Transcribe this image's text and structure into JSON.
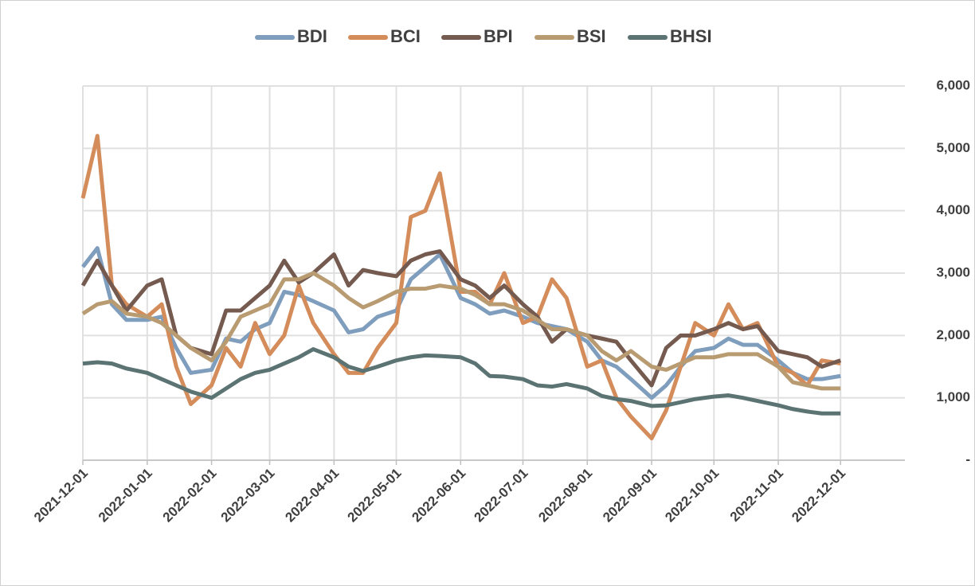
{
  "chart_data": {
    "type": "line",
    "x": [
      "2021-12-01",
      "2021-12-08",
      "2021-12-15",
      "2021-12-22",
      "2022-01-01",
      "2022-01-08",
      "2022-01-15",
      "2022-01-22",
      "2022-02-01",
      "2022-02-08",
      "2022-02-15",
      "2022-02-22",
      "2022-03-01",
      "2022-03-08",
      "2022-03-15",
      "2022-03-22",
      "2022-04-01",
      "2022-04-08",
      "2022-04-15",
      "2022-04-22",
      "2022-05-01",
      "2022-05-08",
      "2022-05-15",
      "2022-05-22",
      "2022-06-01",
      "2022-06-08",
      "2022-06-15",
      "2022-06-22",
      "2022-07-01",
      "2022-07-08",
      "2022-07-15",
      "2022-07-22",
      "2022-08-01",
      "2022-08-08",
      "2022-08-15",
      "2022-08-22",
      "2022-09-01",
      "2022-09-08",
      "2022-09-15",
      "2022-09-22",
      "2022-10-01",
      "2022-10-08",
      "2022-10-15",
      "2022-10-22",
      "2022-11-01",
      "2022-11-08",
      "2022-11-15",
      "2022-11-22",
      "2022-12-01"
    ],
    "series": [
      {
        "name": "BDI",
        "color": "#7f9dbd",
        "values": [
          3100,
          3400,
          2500,
          2250,
          2250,
          2300,
          1800,
          1400,
          1450,
          1950,
          1900,
          2100,
          2200,
          2700,
          2650,
          2550,
          2400,
          2050,
          2100,
          2300,
          2400,
          2900,
          3100,
          3300,
          2600,
          2500,
          2350,
          2400,
          2300,
          2200,
          2150,
          2100,
          1900,
          1600,
          1500,
          1300,
          1000,
          1200,
          1500,
          1750,
          1800,
          1950,
          1850,
          1850,
          1600,
          1400,
          1300,
          1300,
          1350
        ]
      },
      {
        "name": "BCI",
        "color": "#d48c5a",
        "values": [
          4200,
          5200,
          2800,
          2500,
          2300,
          2500,
          1500,
          900,
          1200,
          1800,
          1500,
          2200,
          1700,
          2000,
          2800,
          2200,
          1700,
          1400,
          1400,
          1800,
          2200,
          3900,
          4000,
          4600,
          2700,
          2700,
          2500,
          3000,
          2200,
          2300,
          2900,
          2600,
          1500,
          1600,
          1000,
          700,
          350,
          800,
          1500,
          2200,
          2000,
          2500,
          2100,
          2200,
          1500,
          1400,
          1200,
          1600,
          1550
        ]
      },
      {
        "name": "BPI",
        "color": "#755a4f",
        "values": [
          2800,
          3200,
          2800,
          2400,
          2800,
          2900,
          2000,
          1800,
          1700,
          2400,
          2400,
          2600,
          2800,
          3200,
          2850,
          3000,
          3300,
          2800,
          3050,
          3000,
          2950,
          3200,
          3300,
          3350,
          2900,
          2800,
          2600,
          2800,
          2500,
          2300,
          1900,
          2100,
          2000,
          1950,
          1900,
          1600,
          1200,
          1800,
          2000,
          2000,
          2100,
          2200,
          2100,
          2150,
          1750,
          1700,
          1650,
          1500,
          1600
        ]
      },
      {
        "name": "BSI",
        "color": "#b99b72",
        "values": [
          2350,
          2500,
          2550,
          2350,
          2300,
          2200,
          2000,
          1800,
          1600,
          1900,
          2300,
          2400,
          2500,
          2900,
          2900,
          3000,
          2800,
          2600,
          2450,
          2550,
          2700,
          2750,
          2750,
          2800,
          2750,
          2650,
          2500,
          2500,
          2400,
          2250,
          2100,
          2100,
          2000,
          1750,
          1600,
          1750,
          1500,
          1450,
          1550,
          1650,
          1650,
          1700,
          1700,
          1700,
          1500,
          1250,
          1200,
          1150,
          1150
        ]
      },
      {
        "name": "BHSI",
        "color": "#5b7372",
        "values": [
          1550,
          1570,
          1550,
          1470,
          1400,
          1300,
          1200,
          1100,
          1000,
          1150,
          1300,
          1400,
          1450,
          1550,
          1650,
          1780,
          1650,
          1500,
          1430,
          1500,
          1600,
          1650,
          1680,
          1670,
          1650,
          1550,
          1350,
          1340,
          1300,
          1200,
          1180,
          1220,
          1150,
          1030,
          980,
          950,
          870,
          880,
          930,
          980,
          1020,
          1040,
          1000,
          950,
          880,
          820,
          780,
          750,
          750
        ]
      }
    ],
    "xlim": [
      "2021-12-01",
      "2023-01-01"
    ],
    "xticks": [
      "2021-12-01",
      "2022-01-01",
      "2022-02-01",
      "2022-03-01",
      "2022-04-01",
      "2022-05-01",
      "2022-06-01",
      "2022-07-01",
      "2022-08-01",
      "2022-09-01",
      "2022-10-01",
      "2022-11-01",
      "2022-12-01"
    ],
    "ylim": [
      0,
      6000
    ],
    "yticks": [
      {
        "value": 0,
        "label": "-"
      },
      {
        "value": 1000,
        "label": "1,000"
      },
      {
        "value": 2000,
        "label": "2,000"
      },
      {
        "value": 3000,
        "label": "3,000"
      },
      {
        "value": 4000,
        "label": "4,000"
      },
      {
        "value": 5000,
        "label": "5,000"
      },
      {
        "value": 6000,
        "label": "6,000"
      }
    ],
    "grid": true,
    "legend": "top"
  }
}
